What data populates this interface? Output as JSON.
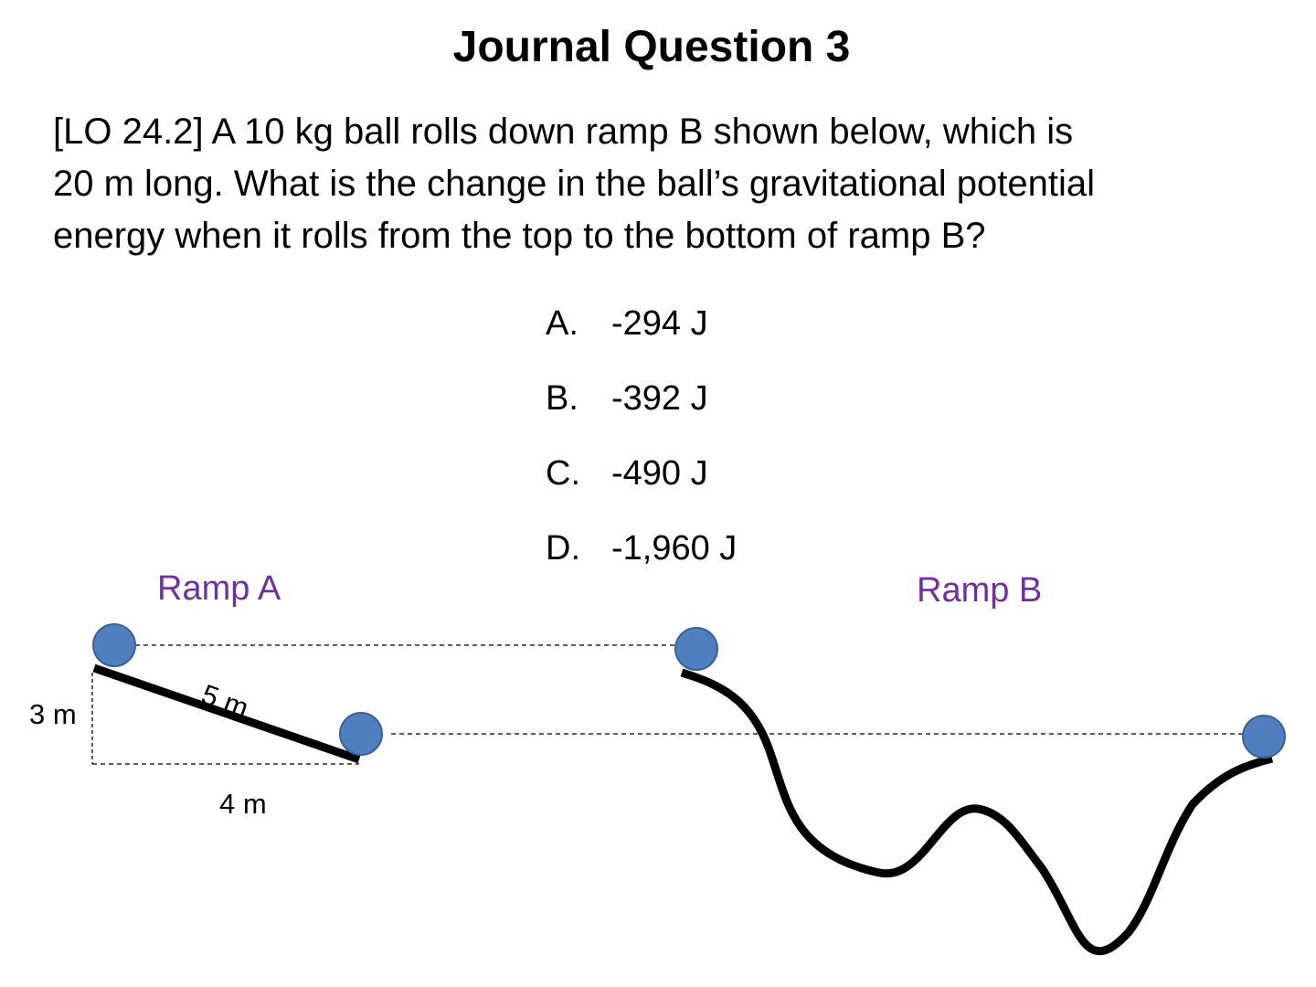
{
  "title": "Journal Question 3",
  "question": {
    "lines": [
      "[LO 24.2] A 10 kg ball rolls down ramp B shown below, which is",
      "20 m long. What is the change in the ball’s gravitational potential",
      "energy when it rolls from the top to the bottom of ramp B?"
    ]
  },
  "choices": [
    {
      "letter": "A.",
      "value": "-294 J"
    },
    {
      "letter": "B.",
      "value": "-392 J"
    },
    {
      "letter": "C.",
      "value": "-490 J"
    },
    {
      "letter": "D.",
      "value": "-1,960 J"
    }
  ],
  "diagram": {
    "ramp_a_label": "Ramp A",
    "ramp_b_label": "Ramp B",
    "height_label": "3 m",
    "base_label": "4 m",
    "slope_label": "5 m"
  },
  "colors": {
    "ball_fill": "#4f7fbe",
    "ball_stroke": "#3a6296",
    "label_color": "#7030a0",
    "ramp_color": "#000000"
  }
}
